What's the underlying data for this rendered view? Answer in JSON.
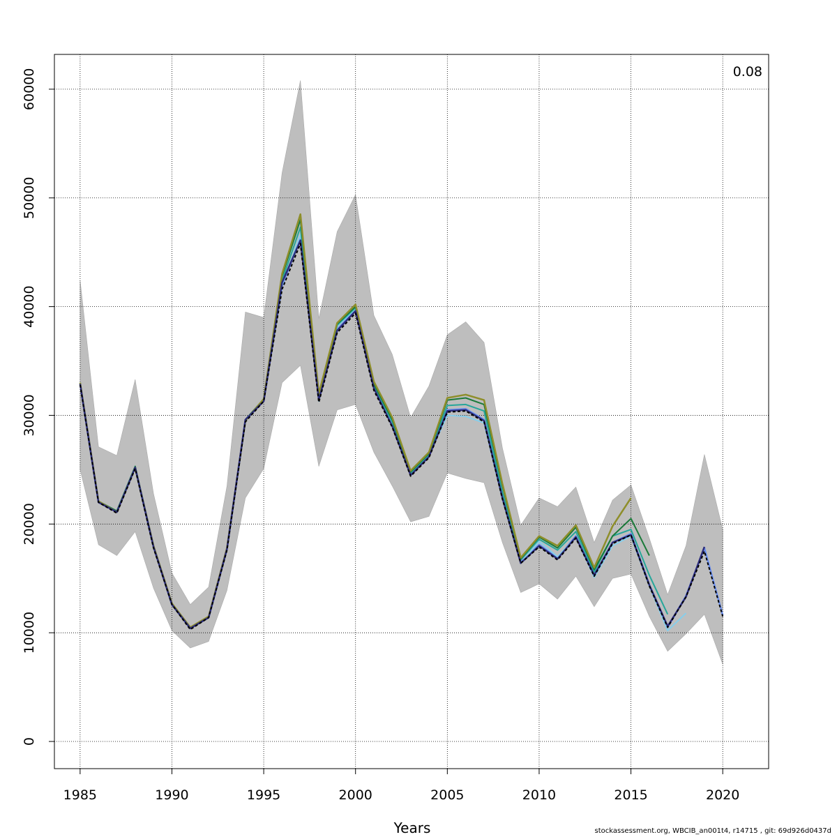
{
  "chart_data": {
    "type": "line",
    "xlabel": "Years",
    "ylabel": "",
    "corner_label": "0.08",
    "xlim": [
      1983.6,
      2022.5
    ],
    "ylim": [
      -2500,
      63200
    ],
    "x_ticks": [
      1985,
      1990,
      1995,
      2000,
      2005,
      2010,
      2015,
      2020
    ],
    "y_ticks": [
      0,
      10000,
      20000,
      30000,
      40000,
      50000,
      60000
    ],
    "grid": true,
    "legend": "none",
    "confidence_band": {
      "color": "#bebebe",
      "x": [
        1985,
        1986,
        1987,
        1988,
        1989,
        1990,
        1991,
        1992,
        1993,
        1994,
        1995,
        1996,
        1997,
        1998,
        1999,
        2000,
        2001,
        2002,
        2003,
        2004,
        2005,
        2006,
        2007,
        2008,
        2009,
        2010,
        2011,
        2012,
        2013,
        2014,
        2015,
        2016,
        2017,
        2018,
        2019,
        2020
      ],
      "lower": [
        25000,
        18100,
        17100,
        19300,
        14100,
        10200,
        8600,
        9200,
        13900,
        22400,
        25100,
        33000,
        34600,
        25300,
        30500,
        31000,
        26600,
        23500,
        20200,
        20700,
        24700,
        24200,
        23800,
        18300,
        13700,
        14500,
        13100,
        15200,
        12400,
        15000,
        15400,
        11500,
        8300,
        9900,
        11700,
        7100
      ],
      "upper": [
        42400,
        27100,
        26300,
        33300,
        22800,
        15500,
        12600,
        14200,
        23500,
        39500,
        39000,
        52300,
        60800,
        38900,
        46900,
        50300,
        39200,
        35600,
        29800,
        32700,
        37400,
        38600,
        36700,
        27000,
        19900,
        22400,
        21600,
        23400,
        18300,
        22200,
        23600,
        18700,
        13500,
        18000,
        26400,
        19500
      ]
    },
    "series": [
      {
        "color": "#6a8ff0",
        "width": 2.5,
        "x": [
          1985,
          1986,
          1987,
          1988,
          1989,
          1990,
          1991,
          1992,
          1993,
          1994,
          1995,
          1996,
          1997,
          1998,
          1999,
          2000,
          2001,
          2002,
          2003,
          2004,
          2005,
          2006,
          2007,
          2008,
          2009,
          2010,
          2011,
          2012,
          2013,
          2014,
          2015,
          2016,
          2017,
          2018,
          2019,
          2020
        ],
        "values": [
          32900,
          22000,
          21100,
          25200,
          17900,
          12600,
          10400,
          11400,
          17700,
          29500,
          31400,
          41900,
          46300,
          31500,
          37900,
          39700,
          32600,
          29100,
          24500,
          26200,
          30500,
          30600,
          29600,
          22600,
          16500,
          18100,
          16900,
          18900,
          15300,
          18300,
          19100,
          14400,
          10500,
          13400,
          17800,
          11600
        ]
      },
      {
        "color": "#87ceeb",
        "width": 2,
        "x": [
          1985,
          1986,
          1987,
          1988,
          1989,
          1990,
          1991,
          1992,
          1993,
          1994,
          1995,
          1996,
          1997,
          1998,
          1999,
          2000,
          2001,
          2002,
          2003,
          2004,
          2005,
          2006,
          2007,
          2008,
          2009,
          2010,
          2011,
          2012,
          2013,
          2014,
          2015,
          2016,
          2017,
          2018
        ],
        "values": [
          32900,
          22100,
          21200,
          25300,
          17900,
          12600,
          10400,
          11400,
          17700,
          29500,
          31400,
          42000,
          46600,
          31300,
          38200,
          39800,
          32800,
          29300,
          24600,
          26300,
          30000,
          29900,
          29300,
          22300,
          16400,
          18400,
          17000,
          18800,
          15100,
          18000,
          18900,
          14300,
          10200,
          11800
        ]
      },
      {
        "color": "#26a69a",
        "width": 2,
        "x": [
          1985,
          1986,
          1987,
          1988,
          1989,
          1990,
          1991,
          1992,
          1993,
          1994,
          1995,
          1996,
          1997,
          1998,
          1999,
          2000,
          2001,
          2002,
          2003,
          2004,
          2005,
          2006,
          2007,
          2008,
          2009,
          2010,
          2011,
          2012,
          2013,
          2014,
          2015,
          2016,
          2017
        ],
        "values": [
          33000,
          22100,
          21200,
          25300,
          18000,
          12600,
          10400,
          11400,
          17700,
          29500,
          31500,
          42400,
          47300,
          31700,
          38300,
          39900,
          32800,
          29400,
          24700,
          26400,
          30900,
          31000,
          30400,
          22900,
          16700,
          18600,
          17600,
          19300,
          15600,
          18900,
          19500,
          15300,
          11700
        ]
      },
      {
        "color": "#1b7a3a",
        "width": 2,
        "x": [
          1985,
          1986,
          1987,
          1988,
          1989,
          1990,
          1991,
          1992,
          1993,
          1994,
          1995,
          1996,
          1997,
          1998,
          1999,
          2000,
          2001,
          2002,
          2003,
          2004,
          2005,
          2006,
          2007,
          2008,
          2009,
          2010,
          2011,
          2012,
          2013,
          2014,
          2015,
          2016
        ],
        "values": [
          33000,
          22100,
          21200,
          25300,
          18000,
          12700,
          10500,
          11400,
          17800,
          29600,
          31500,
          42800,
          48000,
          31800,
          38400,
          40000,
          32900,
          29600,
          24800,
          26500,
          31400,
          31600,
          31000,
          23500,
          16800,
          18800,
          17800,
          19700,
          15800,
          18900,
          20500,
          17100
        ]
      },
      {
        "color": "#8e8e2a",
        "width": 2.5,
        "x": [
          1985,
          1986,
          1987,
          1988,
          1989,
          1990,
          1991,
          1992,
          1993,
          1994,
          1995,
          1996,
          1997,
          1998,
          1999,
          2000,
          2001,
          2002,
          2003,
          2004,
          2005,
          2006,
          2007,
          2008,
          2009,
          2010,
          2011,
          2012,
          2013,
          2014,
          2015
        ],
        "values": [
          33000,
          22100,
          21100,
          25200,
          18000,
          12700,
          10500,
          11500,
          17800,
          29500,
          31500,
          43000,
          48500,
          32000,
          38500,
          40200,
          33100,
          29800,
          24900,
          26600,
          31600,
          31900,
          31400,
          23700,
          16900,
          18900,
          18000,
          19900,
          16000,
          19800,
          22400
        ]
      },
      {
        "color": "#2c2c7a",
        "width": 2.5,
        "x": [
          1985,
          1986,
          1987,
          1988,
          1989,
          1990,
          1991,
          1992,
          1993,
          1994,
          1995,
          1996,
          1997,
          1998,
          1999,
          2000,
          2001,
          2002,
          2003,
          2004,
          2005,
          2006,
          2007,
          2008,
          2009,
          2010,
          2011,
          2012,
          2013,
          2014,
          2015,
          2016,
          2017,
          2018,
          2019
        ],
        "values": [
          32900,
          22000,
          21100,
          25200,
          17900,
          12600,
          10400,
          11400,
          17700,
          29600,
          31300,
          42200,
          46100,
          31400,
          37800,
          39600,
          32500,
          29000,
          24500,
          26200,
          30400,
          30500,
          29500,
          22400,
          16400,
          18000,
          16800,
          18800,
          15300,
          18300,
          19000,
          14400,
          10600,
          13300,
          17900
        ]
      },
      {
        "color": "#000000",
        "width": 2,
        "dash": "4,3",
        "x": [
          1985,
          1986,
          1987,
          1988,
          1989,
          1990,
          1991,
          1992,
          1993,
          1994,
          1995,
          1996,
          1997,
          1998,
          1999,
          2000,
          2001,
          2002,
          2003,
          2004,
          2005,
          2006,
          2007,
          2008,
          2009,
          2010,
          2011,
          2012,
          2013,
          2014,
          2015,
          2016,
          2017,
          2018,
          2019,
          2020
        ],
        "values": [
          32800,
          22000,
          21000,
          25100,
          17800,
          12600,
          10300,
          11400,
          17600,
          29400,
          31300,
          41600,
          45800,
          31200,
          37600,
          39400,
          32300,
          28900,
          24400,
          26100,
          30300,
          30400,
          29400,
          22300,
          16400,
          17900,
          16700,
          18700,
          15200,
          18200,
          19000,
          14300,
          10500,
          13300,
          17500,
          11500
        ]
      }
    ]
  },
  "footer": {
    "note": "stockassessment.org, WBCIB_an001t4, r14715 , git: 69d926d0437d"
  }
}
